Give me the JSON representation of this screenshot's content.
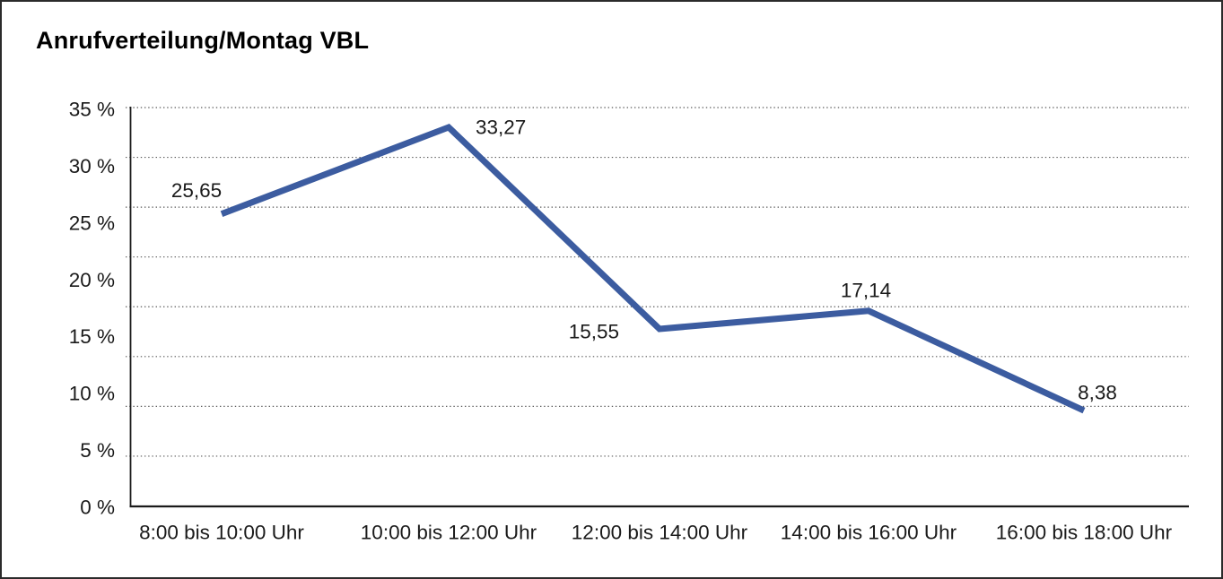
{
  "chart_data": {
    "type": "line",
    "title": "Anrufverteilung/Montag VBL",
    "categories": [
      "8:00 bis 10:00 Uhr",
      "10:00 bis 12:00 Uhr",
      "12:00 bis 14:00 Uhr",
      "14:00 bis 16:00 Uhr",
      "16:00 bis 18:00 Uhr"
    ],
    "values": [
      25.65,
      33.27,
      15.55,
      17.14,
      8.38
    ],
    "point_labels": [
      "25,65",
      "33,27",
      "15,55",
      "17,14",
      "8,38"
    ],
    "xlabel": "",
    "ylabel": "",
    "ylim": [
      0,
      35
    ],
    "y_tick_labels": [
      "35 %",
      "30 %",
      "25 %",
      "20 %",
      "15 %",
      "10 %",
      "5 %",
      "0 %"
    ],
    "y_tick_values": [
      35,
      30,
      25,
      20,
      15,
      10,
      5,
      0
    ],
    "grid": "horizontal-dotted",
    "legend": "none",
    "colors": {
      "line": "#3C5CA0",
      "grid": "#5a5a5a",
      "axis": "#1a1a1a",
      "text": "#1a1a1a",
      "background": "#ffffff"
    }
  }
}
